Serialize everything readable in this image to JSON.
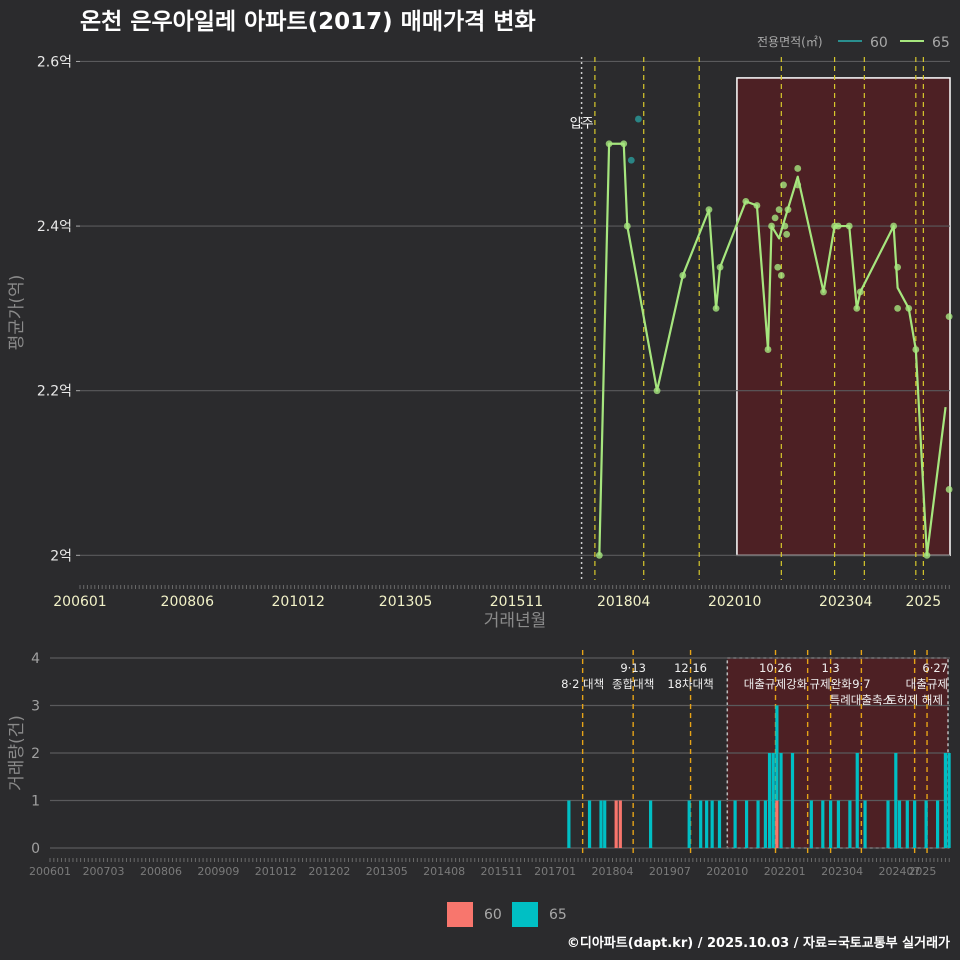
{
  "title": "온천 은우아일레 아파트(2017) 매매가격 변화",
  "caption": "©디아파트(dapt.kr) / 2025.10.03 / 자료=국토교통부 실거래가",
  "legend": {
    "title": "전용면적(㎡)",
    "items": [
      {
        "label": "60",
        "line_color": "#2a8f8f",
        "fill_color": "#f8766d"
      },
      {
        "label": "65",
        "line_color": "#a6e67e",
        "fill_color": "#00bfc4"
      }
    ]
  },
  "colors": {
    "bg": "#2b2b2d",
    "grid": "#5a5a5c",
    "line65": "#a6e67e",
    "line60": "#2a8f8f",
    "policy_line": "#d7c82c",
    "policy_line_bottom": "#e6a317",
    "shade_fill": "#5a1e22",
    "bar60": "#f8766d",
    "bar65": "#00bfc4"
  },
  "chart_data": [
    {
      "type": "line",
      "title": "온천 은우아일레 아파트(2017) 매매가격 변화",
      "xlabel": "거래년월",
      "ylabel": "평균가(억)",
      "xlim": [
        2006.0,
        2025.6
      ],
      "ylim": [
        1.97,
        2.62
      ],
      "x_ticks": [
        "200601",
        "200806",
        "201012",
        "201305",
        "201511",
        "201804",
        "202010",
        "202304",
        "2025"
      ],
      "y_ticks": [
        {
          "value": 2.0,
          "label": "2억"
        },
        {
          "value": 2.2,
          "label": "2.2억"
        },
        {
          "value": 2.4,
          "label": "2.4억"
        },
        {
          "value": 2.6,
          "label": "2.6억"
        }
      ],
      "move_in": {
        "x": 2017.3,
        "label": "입주"
      },
      "policy_lines": [
        2017.6,
        2018.7,
        2019.95,
        2021.8,
        2023.0,
        2023.67,
        2024.83,
        2025.0
      ],
      "shade": {
        "x_start": 2020.8,
        "x_end": 2025.6,
        "y_start": 2.0,
        "y_end": 2.58
      },
      "series": [
        {
          "name": "65",
          "line": [
            [
              2017.7,
              2.0
            ],
            [
              2017.92,
              2.5
            ],
            [
              2018.25,
              2.5
            ],
            [
              2018.33,
              2.4
            ],
            [
              2019.0,
              2.2
            ],
            [
              2019.58,
              2.34
            ],
            [
              2020.17,
              2.42
            ],
            [
              2020.33,
              2.3
            ],
            [
              2020.42,
              2.35
            ],
            [
              2021.0,
              2.43
            ],
            [
              2021.25,
              2.425
            ],
            [
              2021.5,
              2.25
            ],
            [
              2021.58,
              2.4
            ],
            [
              2021.75,
              2.385
            ],
            [
              2021.83,
              2.4
            ],
            [
              2022.17,
              2.46
            ],
            [
              2022.75,
              2.32
            ],
            [
              2023.0,
              2.4
            ],
            [
              2023.33,
              2.4
            ],
            [
              2023.5,
              2.3
            ],
            [
              2023.58,
              2.32
            ],
            [
              2024.33,
              2.4
            ],
            [
              2024.42,
              2.325
            ],
            [
              2024.67,
              2.3
            ],
            [
              2024.83,
              2.25
            ],
            [
              2025.08,
              2.0
            ],
            [
              2025.5,
              2.18
            ]
          ],
          "points": [
            [
              2017.7,
              2.0
            ],
            [
              2017.92,
              2.5
            ],
            [
              2018.25,
              2.5
            ],
            [
              2018.33,
              2.4
            ],
            [
              2019.0,
              2.2
            ],
            [
              2019.58,
              2.34
            ],
            [
              2020.17,
              2.42
            ],
            [
              2020.33,
              2.3
            ],
            [
              2020.42,
              2.35
            ],
            [
              2021.0,
              2.43
            ],
            [
              2021.25,
              2.425
            ],
            [
              2021.5,
              2.25
            ],
            [
              2021.58,
              2.4
            ],
            [
              2021.66,
              2.41
            ],
            [
              2021.72,
              2.35
            ],
            [
              2021.75,
              2.42
            ],
            [
              2021.8,
              2.34
            ],
            [
              2021.85,
              2.45
            ],
            [
              2021.88,
              2.4
            ],
            [
              2021.92,
              2.39
            ],
            [
              2021.95,
              2.42
            ],
            [
              2022.17,
              2.47
            ],
            [
              2022.17,
              2.45
            ],
            [
              2022.75,
              2.32
            ],
            [
              2023.0,
              2.4
            ],
            [
              2023.08,
              2.4
            ],
            [
              2023.33,
              2.4
            ],
            [
              2023.5,
              2.3
            ],
            [
              2023.58,
              2.32
            ],
            [
              2024.33,
              2.4
            ],
            [
              2024.42,
              2.35
            ],
            [
              2024.42,
              2.3
            ],
            [
              2024.67,
              2.3
            ],
            [
              2024.83,
              2.25
            ],
            [
              2025.08,
              2.0
            ],
            [
              2025.58,
              2.29
            ],
            [
              2025.58,
              2.08
            ]
          ]
        },
        {
          "name": "60",
          "line": [],
          "points": [
            [
              2018.58,
              2.53
            ],
            [
              2018.42,
              2.48
            ]
          ]
        }
      ]
    },
    {
      "type": "bar",
      "xlabel": "",
      "ylabel": "거래량(건)",
      "xlim": [
        2006.0,
        2025.6
      ],
      "ylim": [
        0,
        4
      ],
      "x_ticks": [
        "200601",
        "200703",
        "200806",
        "200909",
        "201012",
        "201202",
        "201305",
        "201408",
        "201511",
        "201701",
        "201804",
        "201907",
        "202010",
        "202201",
        "202304",
        "202407",
        "2025"
      ],
      "y_ticks": [
        0,
        1,
        2,
        3,
        4
      ],
      "policy_lines": [
        2017.6,
        2018.7,
        2019.95,
        2021.8,
        2022.5,
        2023.0,
        2023.67,
        2024.83,
        2025.1
      ],
      "shade": {
        "x_start": 2020.75,
        "x_end": 2025.6
      },
      "annotations": [
        {
          "x": 2017.6,
          "row": 1,
          "text": "8·2 대책"
        },
        {
          "x": 2018.7,
          "row": 0,
          "text": "9·13"
        },
        {
          "x": 2018.7,
          "row": 1,
          "text": "종합대책"
        },
        {
          "x": 2019.95,
          "row": 0,
          "text": "12·16"
        },
        {
          "x": 2019.95,
          "row": 1,
          "text": "18차대책"
        },
        {
          "x": 2021.8,
          "row": 0,
          "text": "10·26"
        },
        {
          "x": 2021.8,
          "row": 1,
          "text": "대출규제강화"
        },
        {
          "x": 2023.0,
          "row": 0,
          "text": "1·3"
        },
        {
          "x": 2023.0,
          "row": 1,
          "text": "규제완화"
        },
        {
          "x": 2023.67,
          "row": 1,
          "text": "9·7"
        },
        {
          "x": 2023.67,
          "row": 2,
          "text": "특례대출축소"
        },
        {
          "x": 2024.83,
          "row": 2,
          "text": "토허제 해제"
        },
        {
          "x": 2025.1,
          "row": 0,
          "text": "6·27"
        },
        {
          "x": 2025.1,
          "row": 1,
          "text": "대출규제"
        }
      ],
      "series": [
        {
          "name": "65",
          "bars": [
            [
              2017.3,
              1
            ],
            [
              2017.75,
              1
            ],
            [
              2018.0,
              1
            ],
            [
              2018.08,
              1
            ],
            [
              2019.08,
              1
            ],
            [
              2019.92,
              1
            ],
            [
              2020.17,
              1
            ],
            [
              2020.3,
              1
            ],
            [
              2020.42,
              1
            ],
            [
              2020.58,
              1
            ],
            [
              2020.92,
              1
            ],
            [
              2021.17,
              1
            ],
            [
              2021.42,
              1
            ],
            [
              2021.58,
              1
            ],
            [
              2021.67,
              2
            ],
            [
              2021.75,
              2
            ],
            [
              2021.83,
              3
            ],
            [
              2021.92,
              2
            ],
            [
              2022.17,
              2
            ],
            [
              2022.58,
              1
            ],
            [
              2022.83,
              1
            ],
            [
              2023.0,
              1
            ],
            [
              2023.17,
              1
            ],
            [
              2023.42,
              1
            ],
            [
              2023.58,
              2
            ],
            [
              2023.75,
              1
            ],
            [
              2024.25,
              1
            ],
            [
              2024.42,
              2
            ],
            [
              2024.5,
              1
            ],
            [
              2024.67,
              1
            ],
            [
              2024.83,
              1
            ],
            [
              2025.08,
              1
            ],
            [
              2025.33,
              1
            ],
            [
              2025.5,
              2
            ],
            [
              2025.58,
              2
            ]
          ]
        },
        {
          "name": "60",
          "bars": [
            [
              2018.33,
              1
            ],
            [
              2018.42,
              1
            ],
            [
              2021.83,
              1
            ]
          ]
        }
      ]
    }
  ]
}
